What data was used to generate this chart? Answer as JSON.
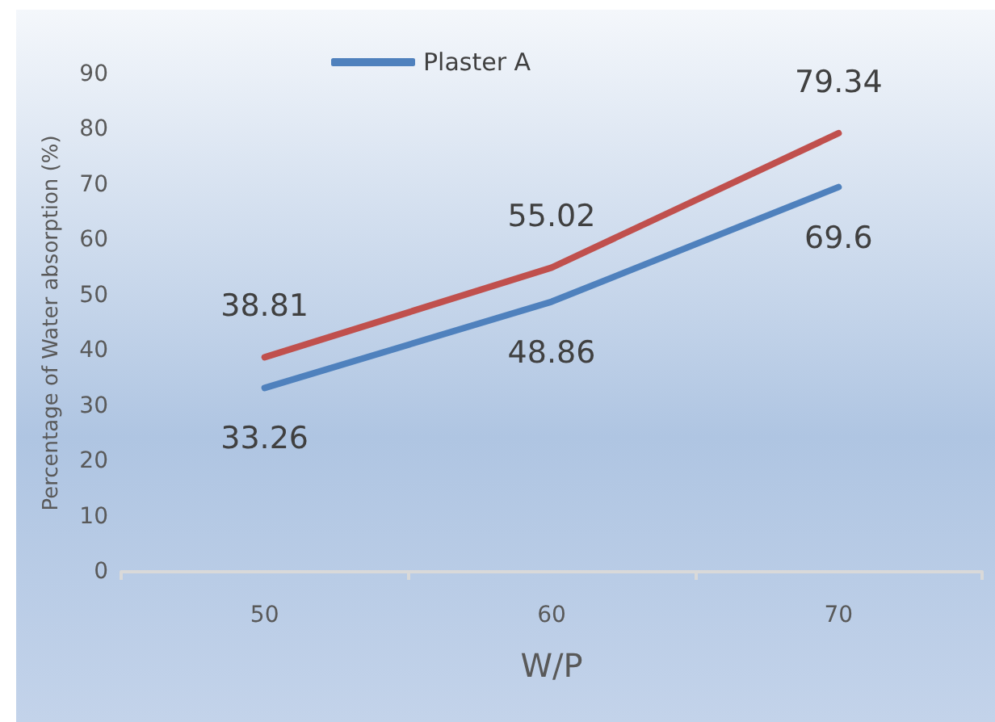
{
  "chart_data": {
    "type": "line",
    "xlabel": "W/P",
    "ylabel": "Percentage of Water absorption (%)",
    "categories": [
      "50",
      "60",
      "70"
    ],
    "series": [
      {
        "name": "Plaster A",
        "color": "#4f81bd",
        "values": [
          33.26,
          48.86,
          69.6
        ]
      },
      {
        "color": "#c0504d",
        "values": [
          38.81,
          55.02,
          79.34
        ]
      }
    ],
    "ylim": [
      0,
      90
    ],
    "yticks": [
      0,
      10,
      20,
      30,
      40,
      50,
      60,
      70,
      80,
      90
    ],
    "grid": false,
    "legend": "top",
    "marker": "none",
    "line_style": "solid",
    "data_labels": true
  }
}
